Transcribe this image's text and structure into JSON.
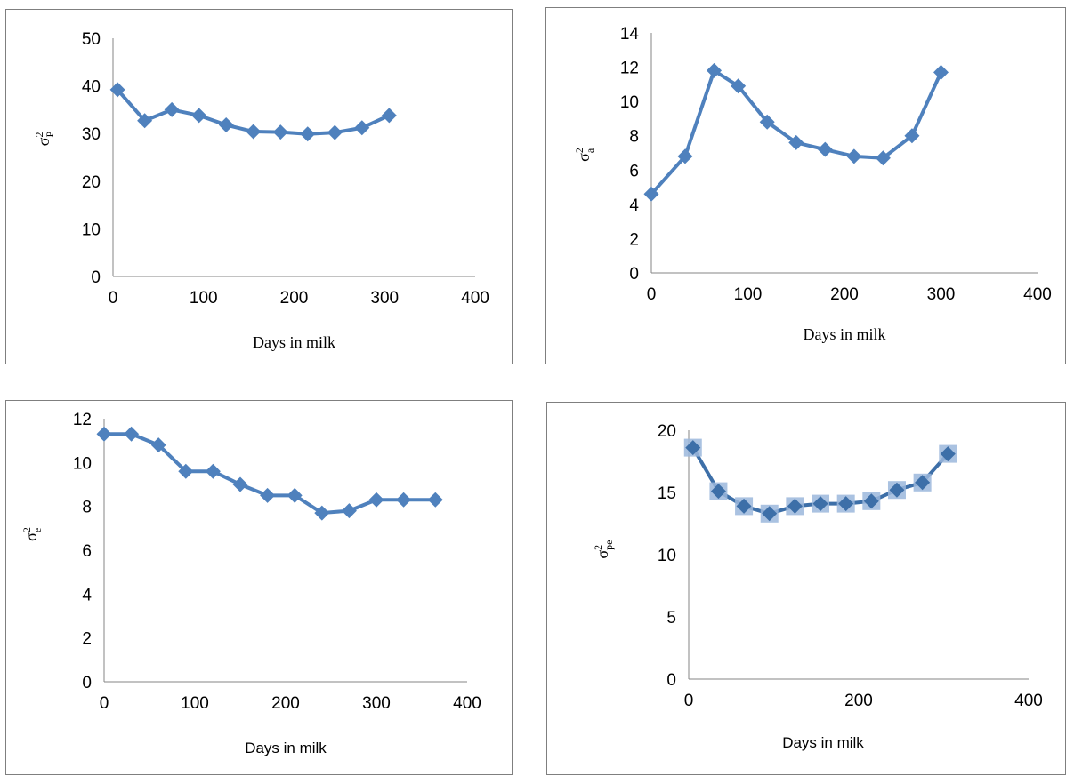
{
  "colors": {
    "series": "#4f81bd",
    "series_dark": "#3d6fa8",
    "marker_shadow": "#9bb7dc"
  },
  "chart_data": [
    {
      "id": "chart1",
      "type": "line",
      "ylabel_base": "σ",
      "ylabel_sup": "2",
      "ylabel_sub": "P",
      "xlabel": "Days in milk",
      "xlim": [
        0,
        400
      ],
      "ylim": [
        0,
        50
      ],
      "xticks": [
        0,
        100,
        200,
        300,
        400
      ],
      "yticks": [
        0,
        10,
        20,
        30,
        40,
        50
      ],
      "xtick_labels": [
        "0",
        "100",
        "200",
        "300",
        "400"
      ],
      "ytick_labels": [
        "0",
        "10",
        "20",
        "30",
        "40",
        "50"
      ],
      "x": [
        5,
        35,
        65,
        95,
        125,
        155,
        185,
        215,
        245,
        275,
        305
      ],
      "y": [
        39.2,
        32.7,
        35.0,
        33.8,
        31.8,
        30.4,
        30.3,
        29.9,
        30.2,
        31.2,
        33.8
      ]
    },
    {
      "id": "chart2",
      "type": "line",
      "ylabel_base": "σ",
      "ylabel_sup": "2",
      "ylabel_sub": "a",
      "xlabel": "Days in milk",
      "xlim": [
        0,
        400
      ],
      "ylim": [
        0,
        14
      ],
      "xticks": [
        0,
        100,
        200,
        300,
        400
      ],
      "yticks": [
        0,
        2,
        4,
        6,
        8,
        10,
        12,
        14
      ],
      "xtick_labels": [
        "0",
        "100",
        "200",
        "300",
        "400"
      ],
      "ytick_labels": [
        "0",
        "2",
        "4",
        "6",
        "8",
        "10",
        "12",
        "14"
      ],
      "x": [
        0,
        35,
        65,
        90,
        120,
        150,
        180,
        210,
        240,
        270,
        300
      ],
      "y": [
        4.6,
        6.8,
        11.8,
        10.9,
        8.8,
        7.6,
        7.2,
        6.8,
        6.7,
        8.0,
        11.7
      ]
    },
    {
      "id": "chart3",
      "type": "line",
      "ylabel_base": "σ",
      "ylabel_sup": "2",
      "ylabel_sub": "e",
      "xlabel": "Days in milk",
      "xlim": [
        0,
        400
      ],
      "ylim": [
        0,
        12
      ],
      "xticks": [
        0,
        100,
        200,
        300,
        400
      ],
      "yticks": [
        0,
        2,
        4,
        6,
        8,
        10,
        12
      ],
      "xtick_labels": [
        "0",
        "100",
        "200",
        "300",
        "400"
      ],
      "ytick_labels": [
        "0",
        "2",
        "4",
        "6",
        "8",
        "10",
        "12"
      ],
      "x": [
        0,
        30,
        60,
        90,
        120,
        150,
        180,
        210,
        240,
        270,
        300,
        330,
        365
      ],
      "y": [
        11.3,
        11.3,
        10.8,
        9.6,
        9.6,
        9.0,
        8.5,
        8.5,
        7.7,
        7.8,
        8.3,
        8.3,
        8.3
      ]
    },
    {
      "id": "chart4",
      "type": "line",
      "ylabel_base": "σ",
      "ylabel_sup": "2",
      "ylabel_sub": "pe",
      "xlabel": "Days in milk",
      "xlim": [
        0,
        400
      ],
      "ylim": [
        0,
        20
      ],
      "xticks": [
        0,
        200,
        400
      ],
      "yticks": [
        0,
        5,
        10,
        15,
        20
      ],
      "xtick_labels": [
        "0",
        "200",
        "400"
      ],
      "ytick_labels": [
        "0",
        "5",
        "10",
        "15",
        "20"
      ],
      "x": [
        5,
        35,
        65,
        95,
        125,
        155,
        185,
        215,
        245,
        275,
        305
      ],
      "y": [
        18.6,
        15.1,
        13.9,
        13.3,
        13.9,
        14.1,
        14.1,
        14.3,
        15.2,
        15.8,
        18.1
      ]
    }
  ]
}
